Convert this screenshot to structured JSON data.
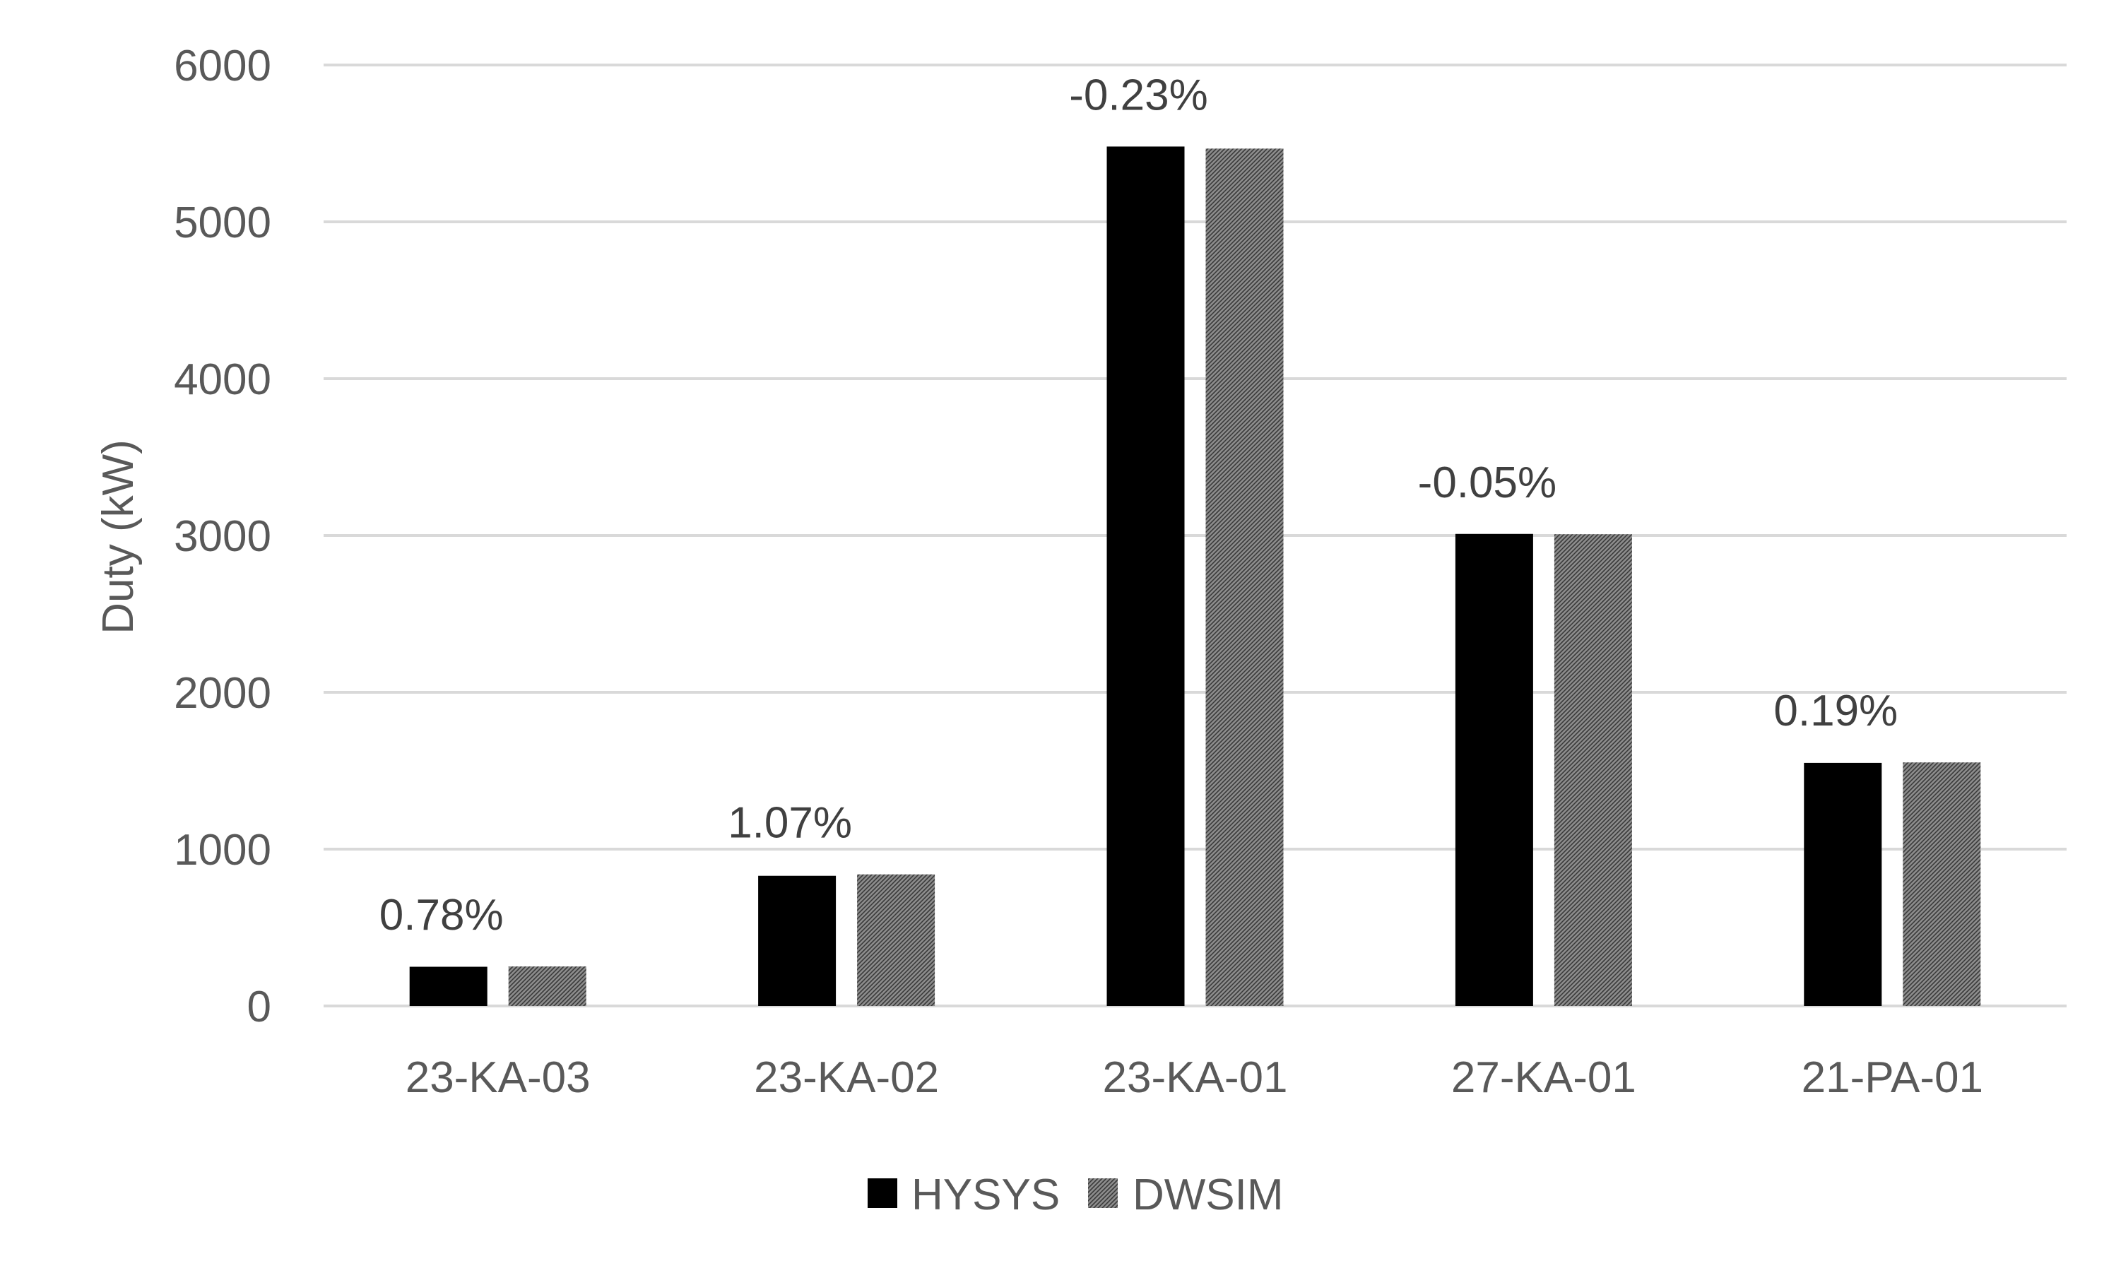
{
  "chart_data": {
    "type": "bar",
    "title": "",
    "xlabel": "",
    "ylabel": "Duty (kW)",
    "ylim": [
      0,
      6000
    ],
    "yticks": [
      0,
      1000,
      2000,
      3000,
      4000,
      5000,
      6000
    ],
    "grid": true,
    "legend_position": "bottom-center",
    "categories": [
      "23-KA-03",
      "23-KA-02",
      "23-KA-01",
      "27-KA-01",
      "21-PA-01"
    ],
    "series": [
      {
        "name": "HYSYS",
        "color": "#000000",
        "pattern": "solid",
        "values": [
          250,
          830,
          5480,
          3010,
          1550
        ]
      },
      {
        "name": "DWSIM",
        "color": "#7f7f7f",
        "pattern": "hatched",
        "values": [
          252,
          839,
          5467,
          3008,
          1553
        ]
      }
    ],
    "annotations": [
      "0.78%",
      "1.07%",
      "-0.23%",
      "-0.05%",
      "0.19%"
    ]
  }
}
